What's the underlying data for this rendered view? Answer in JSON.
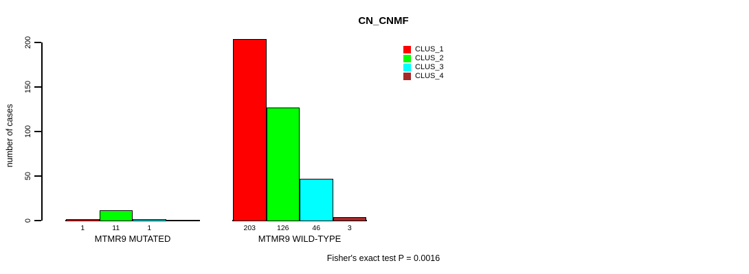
{
  "chart_data": {
    "type": "bar",
    "title": "CN_CNMF",
    "xlabel": "",
    "ylabel": "number of cases",
    "ylim": [
      0,
      200
    ],
    "yticks": [
      0,
      50,
      100,
      150,
      200
    ],
    "grid": false,
    "legend_position": "top-right-inside",
    "categories": [
      "MTMR9 MUTATED",
      "MTMR9 WILD-TYPE"
    ],
    "series": [
      {
        "name": "CLUS_1",
        "color": "#FF0000",
        "values": [
          1,
          203
        ]
      },
      {
        "name": "CLUS_2",
        "color": "#00FF00",
        "values": [
          11,
          126
        ]
      },
      {
        "name": "CLUS_3",
        "color": "#00FFFF",
        "values": [
          1,
          46
        ]
      },
      {
        "name": "CLUS_4",
        "color": "#A52A2A",
        "values": [
          0,
          3
        ]
      }
    ],
    "bar_value_labels": [
      [
        "1",
        "11",
        "1",
        ""
      ],
      [
        "203",
        "126",
        "46",
        "3"
      ]
    ],
    "annotation": "Fisher's exact test P = 0.0016"
  }
}
